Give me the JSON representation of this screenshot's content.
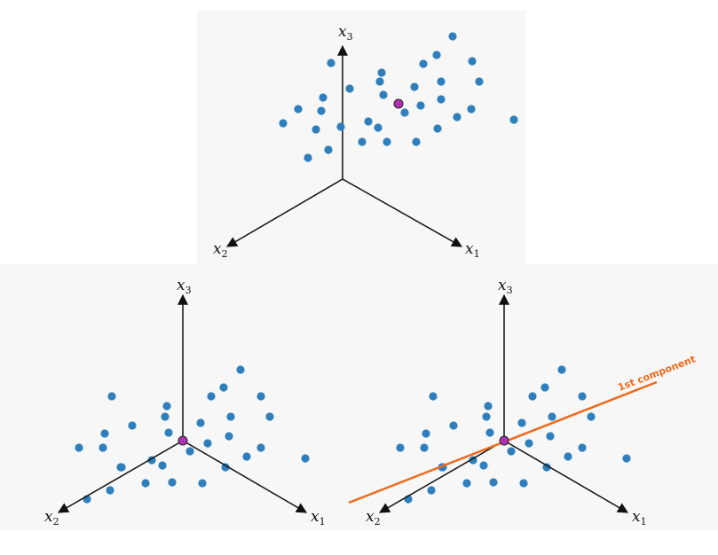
{
  "colors": {
    "point": "#2f7fbd",
    "mean": "#b02fb6",
    "component": "#ee6a1c",
    "axis": "#111111"
  },
  "axes": {
    "x1": {
      "name": "x",
      "sub": "1"
    },
    "x2": {
      "name": "x",
      "sub": "2"
    },
    "x3": {
      "name": "x",
      "sub": "3"
    }
  },
  "panels": {
    "top": {
      "description_hidden": true
    },
    "bottom_left": {
      "description_hidden": true
    },
    "bottom_right": {
      "component_label": "1st component"
    }
  }
}
